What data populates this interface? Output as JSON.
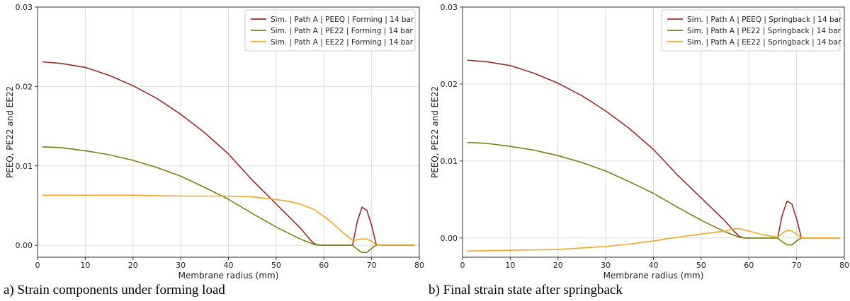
{
  "chart_data": [
    {
      "type": "line",
      "caption": "a) Strain components under forming load",
      "xlabel": "Membrane radius (mm)",
      "ylabel": "PEEQ, PE22 and EE22",
      "xlim": [
        0,
        80
      ],
      "ylim": [
        -0.0015,
        0.03
      ],
      "xticks": [
        0,
        10,
        20,
        30,
        40,
        50,
        60,
        70,
        80
      ],
      "yticks": [
        0.0,
        0.01,
        0.02,
        0.03
      ],
      "ytick_labels": [
        "0.00",
        "0.01",
        "0.02",
        "0.03"
      ],
      "grid": true,
      "legend_position": "top-right",
      "series": [
        {
          "name": "Sim. | Path A | PEEQ | Forming | 14 bar",
          "color": "#9b2a2a",
          "x": [
            1,
            5,
            10,
            15,
            20,
            25,
            30,
            35,
            40,
            45,
            50,
            55,
            57,
            58,
            59,
            66,
            67,
            68,
            69,
            70,
            71,
            79
          ],
          "y": [
            0.0231,
            0.0229,
            0.0224,
            0.0214,
            0.0201,
            0.0185,
            0.0165,
            0.0142,
            0.0115,
            0.0082,
            0.0052,
            0.0022,
            0.0008,
            0.0002,
            0.0,
            0.0,
            0.003,
            0.0048,
            0.0044,
            0.0025,
            0.0,
            0.0
          ]
        },
        {
          "name": "Sim. | Path A | PE22 | Forming | 14 bar",
          "color": "#7d7d16",
          "x": [
            1,
            5,
            10,
            15,
            20,
            25,
            30,
            35,
            40,
            45,
            50,
            55,
            58,
            59,
            66,
            67,
            68,
            69,
            70,
            71,
            79
          ],
          "y": [
            0.0124,
            0.0123,
            0.0119,
            0.0114,
            0.0107,
            0.0098,
            0.0087,
            0.0073,
            0.0058,
            0.004,
            0.0023,
            0.0008,
            0.0001,
            0.0,
            0.0,
            -0.0005,
            -0.0009,
            -0.0009,
            -0.0004,
            0.0,
            0.0
          ]
        },
        {
          "name": "Sim. | Path A | EE22 | Forming | 14 bar",
          "color": "#f5a623",
          "x": [
            1,
            10,
            20,
            30,
            40,
            45,
            48,
            52,
            55,
            58,
            61,
            64,
            66,
            67,
            68,
            69,
            70,
            71,
            79
          ],
          "y": [
            0.0063,
            0.0063,
            0.0063,
            0.0062,
            0.0062,
            0.0061,
            0.0059,
            0.0056,
            0.0052,
            0.0045,
            0.0032,
            0.0016,
            0.0006,
            0.0007,
            0.0008,
            0.0008,
            0.0005,
            0.0,
            0.0
          ]
        }
      ]
    },
    {
      "type": "line",
      "caption": "b) Final strain state after springback",
      "xlabel": "Membrane radius (mm)",
      "ylabel": "PEEQ, PE22 and EE22",
      "xlim": [
        0,
        80
      ],
      "ylim": [
        -0.0025,
        0.03
      ],
      "xticks": [
        0,
        10,
        20,
        30,
        40,
        50,
        60,
        70,
        80
      ],
      "yticks": [
        0.0,
        0.01,
        0.02,
        0.03
      ],
      "ytick_labels": [
        "0.00",
        "0.01",
        "0.02",
        "0.03"
      ],
      "grid": true,
      "legend_position": "top-right",
      "series": [
        {
          "name": "Sim. | Path A | PEEQ | Springback | 14 bar",
          "color": "#9b2a2a",
          "x": [
            1,
            5,
            10,
            15,
            20,
            25,
            30,
            35,
            40,
            45,
            50,
            55,
            57,
            58,
            59,
            66,
            67,
            68,
            69,
            70,
            71,
            79
          ],
          "y": [
            0.0231,
            0.0229,
            0.0224,
            0.0214,
            0.0201,
            0.0185,
            0.0165,
            0.0142,
            0.0115,
            0.0082,
            0.0052,
            0.0022,
            0.0008,
            0.0002,
            0.0,
            0.0,
            0.003,
            0.0048,
            0.0044,
            0.0025,
            0.0,
            0.0
          ]
        },
        {
          "name": "Sim. | Path A | PE22 | Springback | 14 bar",
          "color": "#7d7d16",
          "x": [
            1,
            5,
            10,
            15,
            20,
            25,
            30,
            35,
            40,
            45,
            50,
            55,
            58,
            59,
            66,
            67,
            68,
            69,
            70,
            71,
            79
          ],
          "y": [
            0.0124,
            0.0123,
            0.0119,
            0.0114,
            0.0107,
            0.0098,
            0.0087,
            0.0073,
            0.0058,
            0.004,
            0.0023,
            0.0008,
            0.0001,
            0.0,
            0.0,
            -0.0005,
            -0.0009,
            -0.0009,
            -0.0004,
            0.0,
            0.0
          ]
        },
        {
          "name": "Sim. | Path A | EE22 | Springback | 14 bar",
          "color": "#f5a623",
          "x": [
            1,
            10,
            20,
            25,
            30,
            35,
            40,
            45,
            50,
            55,
            57,
            58,
            60,
            63,
            66,
            67,
            68,
            69,
            70,
            71,
            79
          ],
          "y": [
            -0.0017,
            -0.0016,
            -0.0015,
            -0.0013,
            -0.0011,
            -0.0008,
            -0.0004,
            0.0001,
            0.0005,
            0.0009,
            0.0012,
            0.0012,
            0.0009,
            0.0004,
            0.0001,
            0.0006,
            0.001,
            0.0009,
            0.0005,
            0.0,
            0.0
          ]
        }
      ]
    }
  ]
}
